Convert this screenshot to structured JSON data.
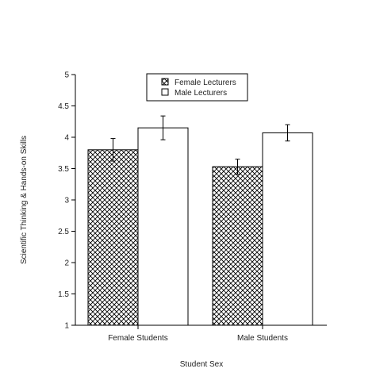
{
  "chart_data": {
    "type": "bar",
    "categories": [
      "Female Students",
      "Male Students"
    ],
    "series": [
      {
        "name": "Female Lecturers",
        "values": [
          3.8,
          3.53
        ],
        "error": [
          0.18,
          0.12
        ],
        "pattern": "crosshatch",
        "color": "#000000"
      },
      {
        "name": "Male Lecturers",
        "values": [
          4.15,
          4.07
        ],
        "error": [
          0.19,
          0.13
        ],
        "pattern": "none",
        "color": "#ffffff"
      }
    ],
    "title": "",
    "xlabel": "Student Sex",
    "ylabel": "Scientific Thinking & Hands-on Skills",
    "ylim": [
      1,
      5
    ],
    "yticks": [
      "1",
      "1.5",
      "2",
      "2.5",
      "3",
      "3.5",
      "4",
      "4.5",
      "5"
    ],
    "legend_position": "top-right",
    "grid": false
  }
}
